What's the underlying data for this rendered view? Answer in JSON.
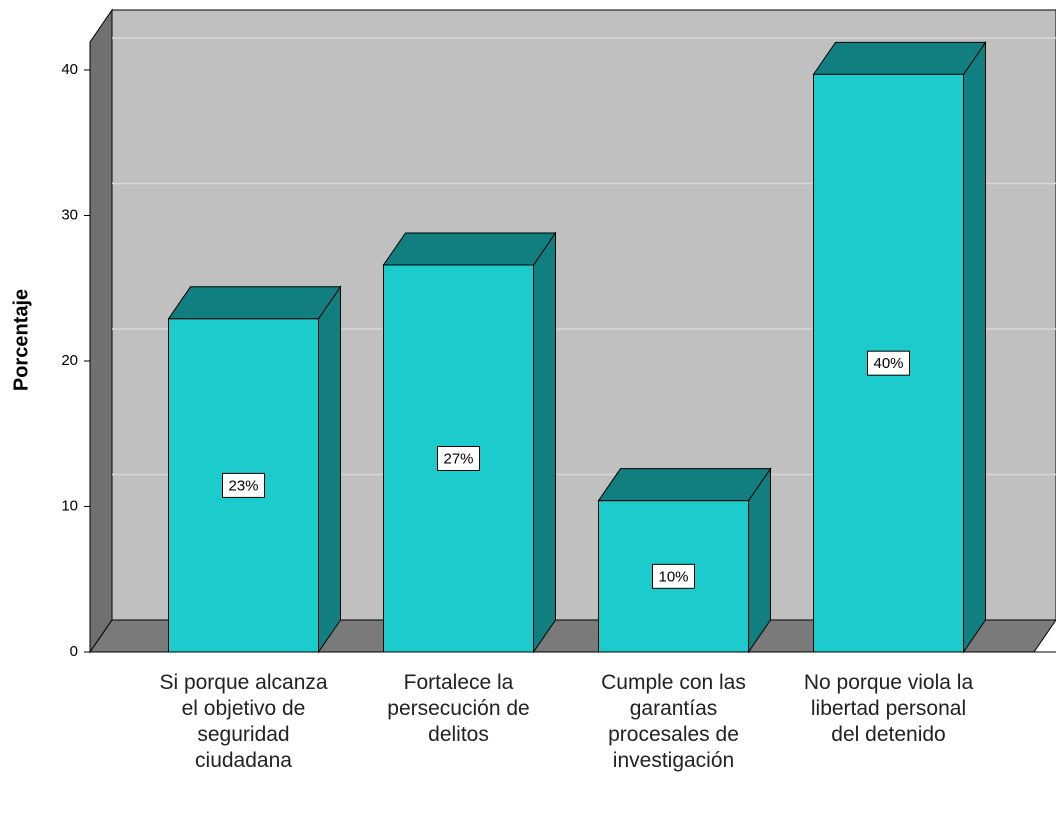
{
  "chart_data": {
    "type": "bar3d",
    "y_label": "Porcentaje",
    "categories": [
      "Si porque alcanza el objetivo de seguridad ciudadana",
      "Fortalece la persecución de delitos",
      "Cumple con las garantías procesales de investigación",
      "No porque viola la libertad personal del detenido"
    ],
    "values": [
      22.9,
      26.6,
      10.4,
      39.7
    ],
    "value_labels": [
      "23%",
      "27%",
      "10%",
      "40%"
    ],
    "color": "#1ccccc",
    "ylim": [
      0,
      40
    ],
    "yticks": [
      0,
      10,
      20,
      30,
      40
    ],
    "grid": true
  }
}
